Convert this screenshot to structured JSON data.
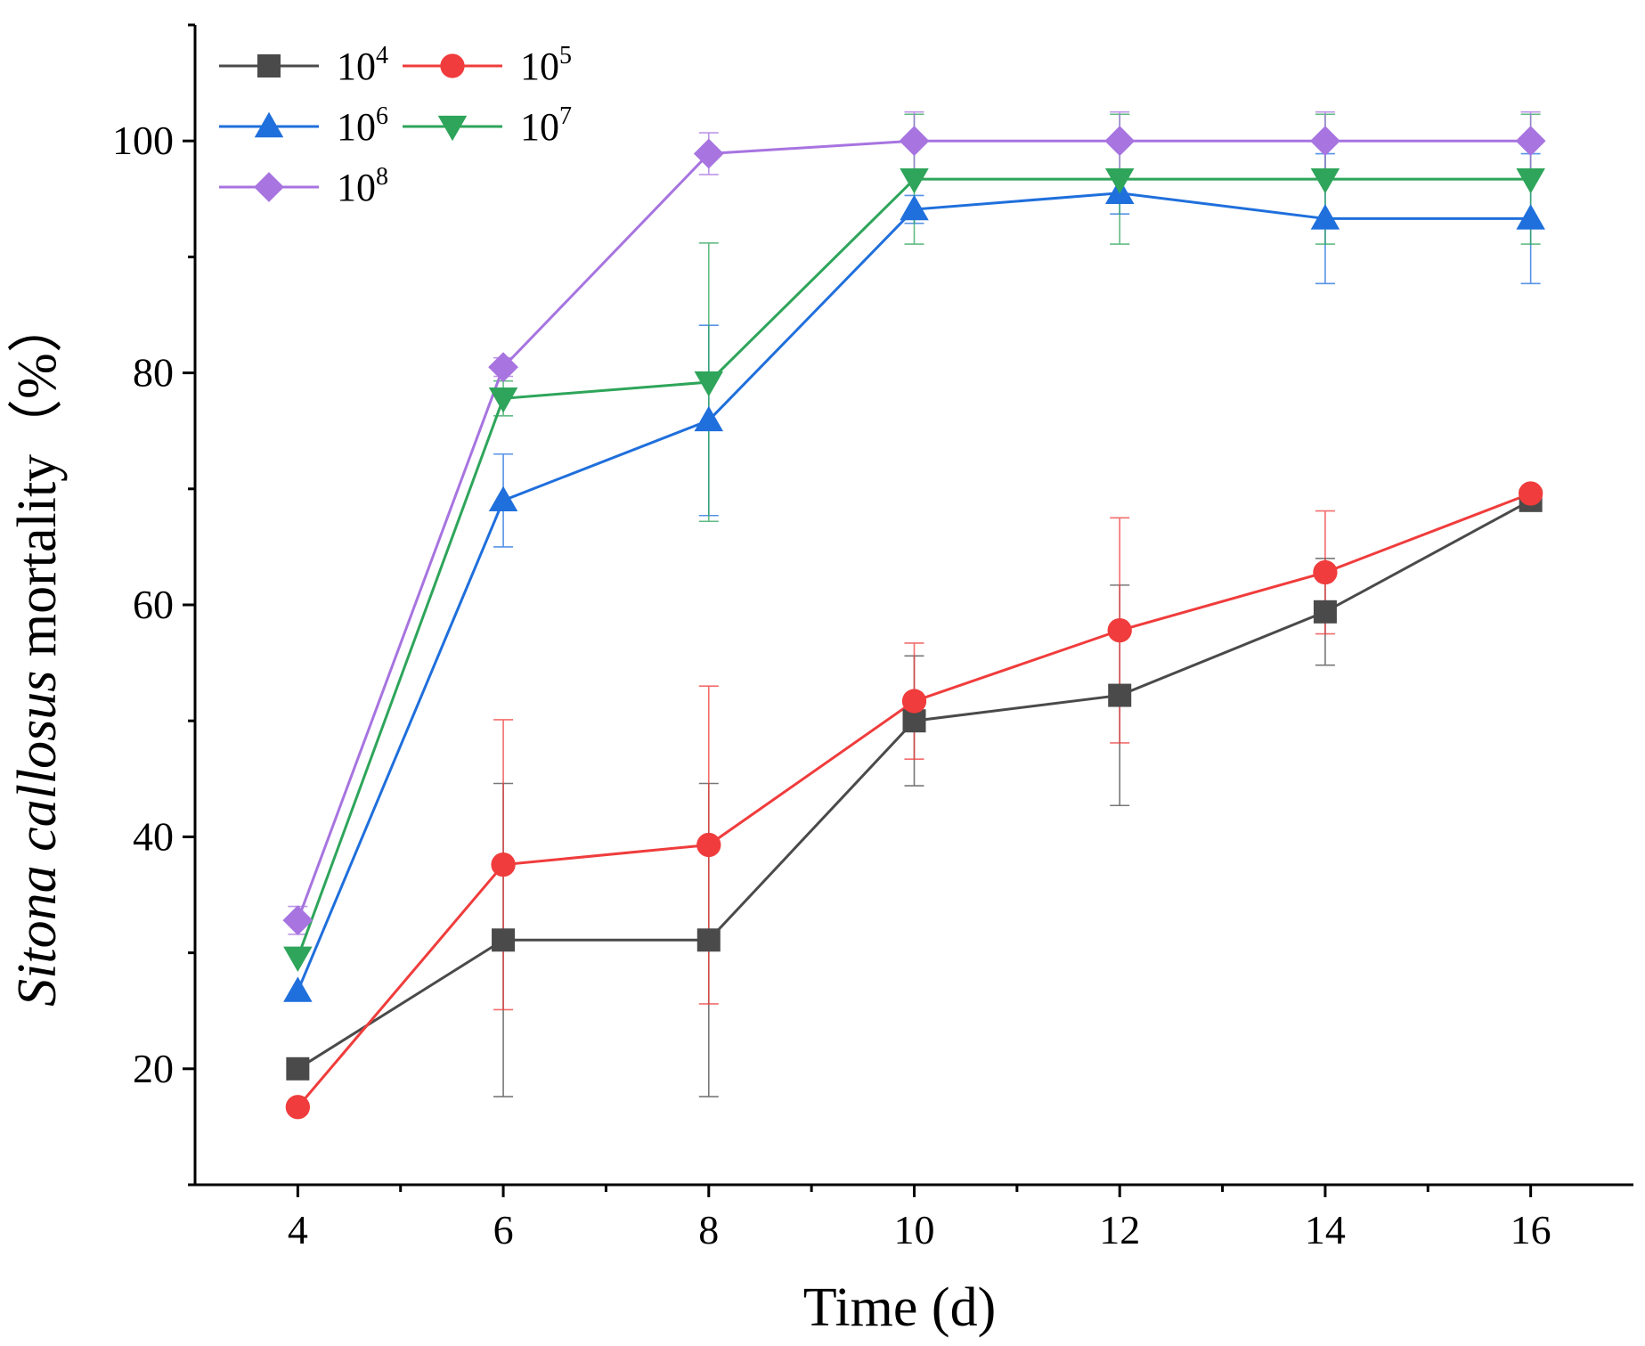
{
  "chart_data": {
    "type": "line",
    "title": "",
    "xlabel": "Time (d)",
    "ylabel_parts": [
      "Sitona callosus",
      " mortality",
      "（%）"
    ],
    "x": [
      4,
      6,
      8,
      10,
      12,
      14,
      16
    ],
    "xlim": [
      3,
      17
    ],
    "ylim": [
      10,
      110
    ],
    "xticks": [
      4,
      6,
      8,
      10,
      12,
      14,
      16
    ],
    "yticks": [
      20,
      40,
      60,
      80,
      100
    ],
    "grid": false,
    "legend_position": "top-left",
    "series": [
      {
        "name": "10",
        "exp": "4",
        "color": "#4a4a4a",
        "marker": "square",
        "values": [
          20,
          31.1,
          31.1,
          50,
          52.2,
          59.4,
          69
        ],
        "errors": [
          0,
          13.5,
          13.5,
          5.6,
          9.5,
          4.6,
          0
        ]
      },
      {
        "name": "10",
        "exp": "5",
        "color": "#f03c3c",
        "marker": "circle",
        "values": [
          16.7,
          37.6,
          39.3,
          51.7,
          57.8,
          62.8,
          69.6
        ],
        "errors": [
          0,
          12.5,
          13.7,
          5,
          9.7,
          5.3,
          0
        ]
      },
      {
        "name": "10",
        "exp": "6",
        "color": "#1f6fdc",
        "marker": "triangle-up",
        "values": [
          26.7,
          69,
          75.9,
          94.1,
          95.5,
          93.3,
          93.3
        ],
        "errors": [
          0,
          4,
          8.2,
          1.2,
          1.8,
          5.6,
          5.6
        ]
      },
      {
        "name": "10",
        "exp": "7",
        "color": "#2ea55a",
        "marker": "triangle-down",
        "values": [
          29.6,
          77.8,
          79.2,
          96.7,
          96.7,
          96.7,
          96.7
        ],
        "errors": [
          0,
          1.5,
          12,
          5.6,
          5.6,
          5.6,
          5.6
        ]
      },
      {
        "name": "10",
        "exp": "8",
        "color": "#a774e0",
        "marker": "diamond",
        "values": [
          32.8,
          80.5,
          98.9,
          100,
          100,
          100,
          100
        ],
        "errors": [
          1.2,
          0.8,
          1.8,
          2.5,
          2.5,
          2.5,
          2.5
        ]
      }
    ]
  }
}
